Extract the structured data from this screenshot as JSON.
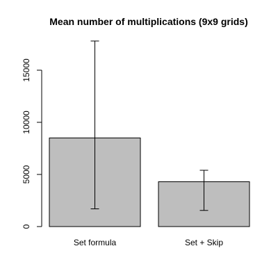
{
  "chart_data": {
    "type": "bar",
    "title": "Mean number of multiplications (9x9 grids)",
    "xlabel": "",
    "ylabel": "",
    "categories": [
      "Set formula",
      "Set + Skip"
    ],
    "values": [
      8500,
      4300
    ],
    "error_low": [
      1700,
      1550
    ],
    "error_high": [
      17800,
      5400
    ],
    "yticks": [
      0,
      5000,
      10000,
      15000
    ],
    "ylim": [
      0,
      18000
    ],
    "bar_color": "#bebebe",
    "grid": false,
    "legend": "none"
  }
}
